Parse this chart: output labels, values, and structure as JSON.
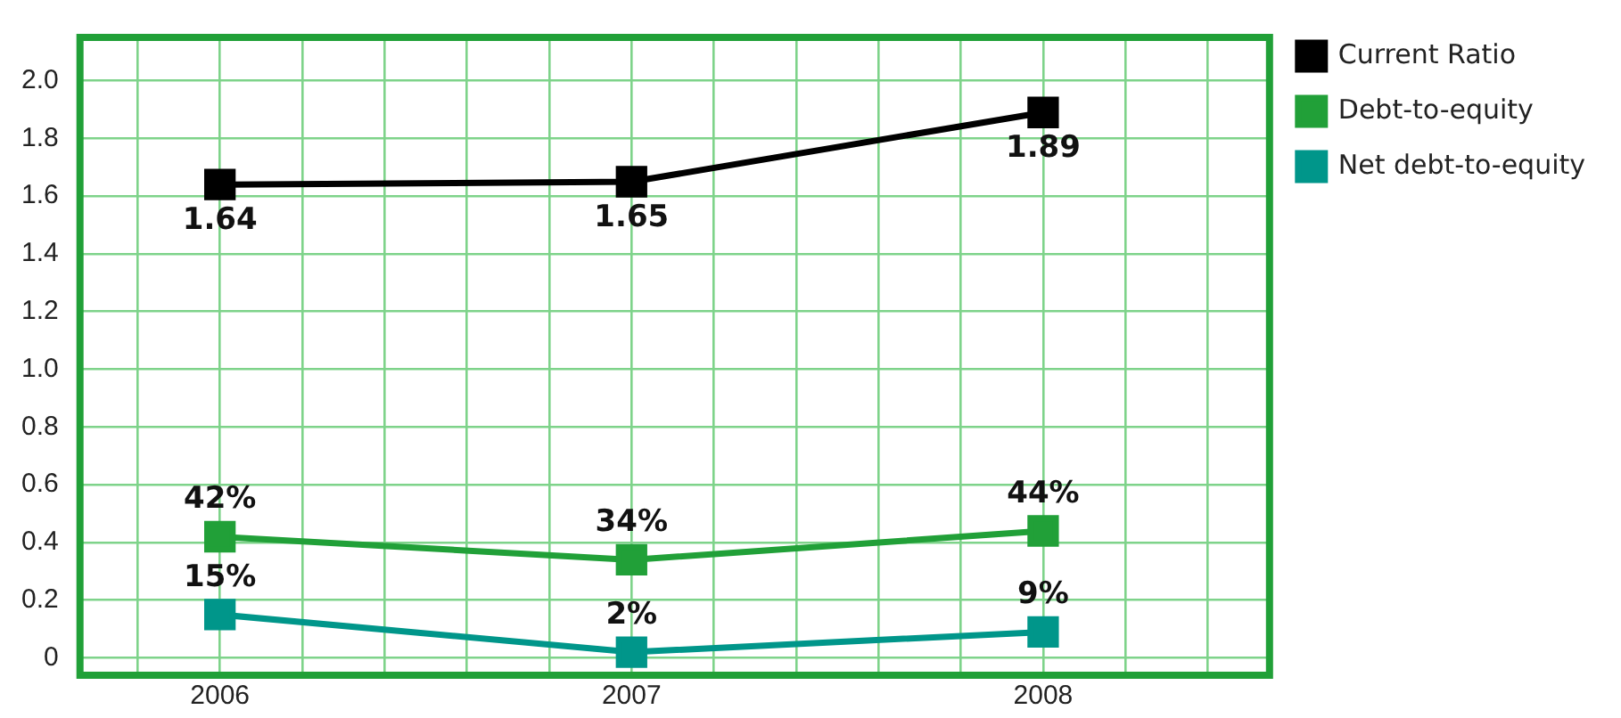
{
  "chart_data": {
    "type": "line",
    "x": [
      2006,
      2007,
      2008
    ],
    "xlim": [
      2005.66,
      2008.55
    ],
    "xticks": [
      {
        "value": 2005.8,
        "label": null
      },
      {
        "value": 2006,
        "label": "2006"
      },
      {
        "value": 2006.2,
        "label": null
      },
      {
        "value": 2006.4,
        "label": null
      },
      {
        "value": 2006.6,
        "label": null
      },
      {
        "value": 2006.8,
        "label": null
      },
      {
        "value": 2007,
        "label": "2007"
      },
      {
        "value": 2007.2,
        "label": null
      },
      {
        "value": 2007.4,
        "label": null
      },
      {
        "value": 2007.6,
        "label": null
      },
      {
        "value": 2007.8,
        "label": null
      },
      {
        "value": 2008,
        "label": "2008"
      },
      {
        "value": 2008.2,
        "label": null
      },
      {
        "value": 2008.4,
        "label": null
      }
    ],
    "ylim": [
      -0.06,
      2.15
    ],
    "yticks": [
      0,
      0.2,
      0.4,
      0.6,
      0.8,
      "1.0",
      1.2,
      1.4,
      1.6,
      1.8,
      "2.0"
    ],
    "series": [
      {
        "name": "Current Ratio",
        "color": "#000000",
        "values": [
          1.64,
          1.65,
          1.89
        ],
        "value_labels": [
          "1.64",
          "1.65",
          "1.89"
        ]
      },
      {
        "name": "Debt-to-equity",
        "color": "#21a038",
        "values": [
          0.42,
          0.34,
          0.44
        ],
        "value_labels": [
          "42%",
          "34%",
          "44%"
        ]
      },
      {
        "name": "Net debt-to-equity",
        "color": "#00968a",
        "values": [
          0.15,
          0.02,
          0.09
        ],
        "value_labels": [
          "15%",
          "2%",
          "9%"
        ]
      }
    ],
    "grid": true,
    "legend": "right",
    "marker": "square",
    "line_style": "solid"
  }
}
